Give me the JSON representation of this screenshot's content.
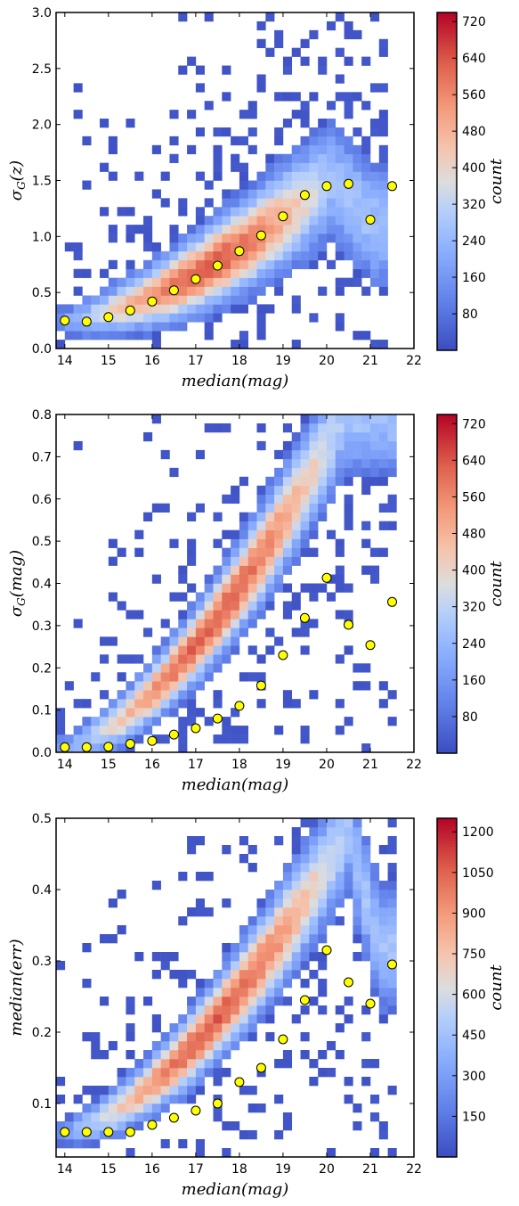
{
  "chart_data": [
    {
      "type": "heatmap",
      "xlabel": "median(mag)",
      "ylabel": "σ_G(z)",
      "ylabel_main": "σ",
      "ylabel_sub": "G",
      "ylabel_rest": "(z)",
      "colorbar_label": "count",
      "xlim": [
        13.8,
        22
      ],
      "ylim": [
        0,
        3.0
      ],
      "x_ticks": [
        14,
        15,
        16,
        17,
        18,
        19,
        20,
        21,
        22
      ],
      "y_ticks": [
        0.0,
        0.5,
        1.0,
        1.5,
        2.0,
        2.5,
        3.0
      ],
      "y_tick_labels": [
        "0.0",
        "0.5",
        "1.0",
        "1.5",
        "2.0",
        "2.5",
        "3.0"
      ],
      "colorbar_range": [
        0,
        740
      ],
      "colorbar_ticks": [
        80,
        160,
        240,
        320,
        400,
        480,
        560,
        640,
        720
      ],
      "band": {
        "x_start": 13.9,
        "peak_x": 20.1,
        "end_x": 21.1,
        "y_at_start": 0.25,
        "y_at_peak": 1.5,
        "y_at_end": 1.1,
        "core_max": 740
      },
      "points": {
        "x": [
          14,
          14.5,
          15,
          15.5,
          16,
          16.5,
          17,
          17.5,
          18,
          18.5,
          19,
          19.5,
          20,
          20.5,
          21,
          21.5
        ],
        "y": [
          0.25,
          0.24,
          0.28,
          0.34,
          0.42,
          0.52,
          0.62,
          0.74,
          0.87,
          1.01,
          1.18,
          1.37,
          1.45,
          1.47,
          1.15,
          1.45
        ]
      }
    },
    {
      "type": "heatmap",
      "xlabel": "median(mag)",
      "ylabel": "σ_G(mag)",
      "ylabel_main": "σ",
      "ylabel_sub": "G",
      "ylabel_rest": "(mag)",
      "colorbar_label": "count",
      "xlim": [
        13.8,
        22
      ],
      "ylim": [
        0,
        0.8
      ],
      "x_ticks": [
        14,
        15,
        16,
        17,
        18,
        19,
        20,
        21,
        22
      ],
      "y_ticks": [
        0.0,
        0.1,
        0.2,
        0.3,
        0.4,
        0.5,
        0.6,
        0.7,
        0.8
      ],
      "y_tick_labels": [
        "0.0",
        "0.1",
        "0.2",
        "0.3",
        "0.4",
        "0.5",
        "0.6",
        "0.7",
        "0.8"
      ],
      "colorbar_range": [
        0,
        740
      ],
      "colorbar_ticks": [
        80,
        160,
        240,
        320,
        400,
        480,
        560,
        640,
        720
      ],
      "band": {
        "x_start": 13.9,
        "peak_x": 20.4,
        "end_x": 21.2,
        "y_at_start": 0.012,
        "y_at_peak": 0.8,
        "y_at_end": 0.8,
        "core_max": 740
      },
      "points": {
        "x": [
          14,
          14.5,
          15,
          15.5,
          16,
          16.5,
          17,
          17.5,
          18,
          18.5,
          19,
          19.5,
          20,
          20.5,
          21,
          21.5
        ],
        "y": [
          0.012,
          0.012,
          0.013,
          0.02,
          0.027,
          0.042,
          0.057,
          0.08,
          0.11,
          0.158,
          0.23,
          0.318,
          0.413,
          0.302,
          0.254,
          0.356
        ]
      }
    },
    {
      "type": "heatmap",
      "xlabel": "median(mag)",
      "ylabel": "median(err)",
      "colorbar_label": "count",
      "xlim": [
        13.8,
        22
      ],
      "ylim": [
        0.025,
        0.5
      ],
      "x_ticks": [
        14,
        15,
        16,
        17,
        18,
        19,
        20,
        21,
        22
      ],
      "y_ticks": [
        0.1,
        0.2,
        0.3,
        0.4,
        0.5
      ],
      "y_tick_labels": [
        "0.1",
        "0.2",
        "0.3",
        "0.4",
        "0.5"
      ],
      "colorbar_range": [
        0,
        1250
      ],
      "colorbar_ticks": [
        150,
        300,
        450,
        600,
        750,
        900,
        1050,
        1200
      ],
      "band": {
        "x_start": 13.9,
        "peak_x": 20.5,
        "end_x": 21.2,
        "y_at_start": 0.06,
        "y_at_peak": 0.48,
        "y_at_end": 0.32,
        "core_max": 1250
      },
      "points": {
        "x": [
          14,
          14.5,
          15,
          15.5,
          16,
          16.5,
          17,
          17.5,
          18,
          18.5,
          19,
          19.5,
          20,
          20.5,
          21,
          21.5
        ],
        "y": [
          0.06,
          0.06,
          0.06,
          0.06,
          0.07,
          0.08,
          0.09,
          0.1,
          0.13,
          0.15,
          0.19,
          0.245,
          0.315,
          0.27,
          0.24,
          0.295
        ]
      }
    }
  ]
}
